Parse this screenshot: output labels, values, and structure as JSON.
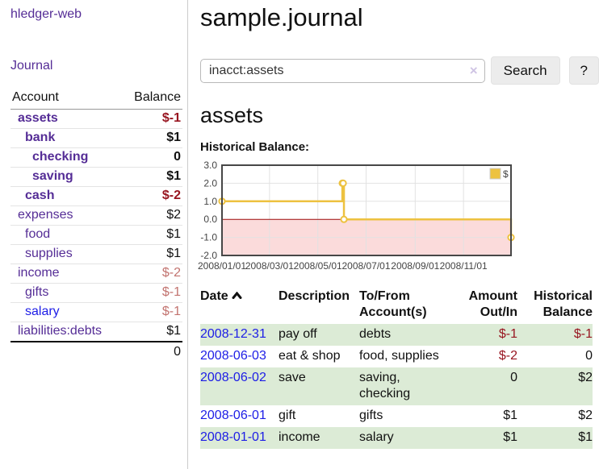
{
  "colors": {
    "link_purple": "#552d96",
    "link_blue": "#1d1de6",
    "negative_strong": "#97141f",
    "negative_muted": "#c2736f",
    "row_green": "#dcebd6",
    "chart_line_gold": "#EDC240",
    "chart_negative_fill": "#fbdbdb",
    "chart_zero_line": "#9e0b0b"
  },
  "sidebar": {
    "brand": "hledger-web",
    "journal_label": "Journal",
    "accounts_table": {
      "headers": [
        "Account",
        "Balance"
      ],
      "rows": [
        {
          "name": "assets",
          "balance": "$-1",
          "depth": 0,
          "bold": true,
          "balance_style": "negstrong",
          "link": "purple"
        },
        {
          "name": "bank",
          "balance": "$1",
          "depth": 1,
          "bold": true,
          "balance_style": "pos",
          "link": "purple"
        },
        {
          "name": "checking",
          "balance": "0",
          "depth": 2,
          "bold": true,
          "balance_style": "pos",
          "link": "purple"
        },
        {
          "name": "saving",
          "balance": "$1",
          "depth": 2,
          "bold": true,
          "balance_style": "pos",
          "link": "purple"
        },
        {
          "name": "cash",
          "balance": "$-2",
          "depth": 1,
          "bold": true,
          "balance_style": "negstrong",
          "link": "purple"
        },
        {
          "name": "expenses",
          "balance": "$2",
          "depth": 0,
          "bold": false,
          "balance_style": "pos",
          "link": "purple"
        },
        {
          "name": "food",
          "balance": "$1",
          "depth": 1,
          "bold": false,
          "balance_style": "pos",
          "link": "purple"
        },
        {
          "name": "supplies",
          "balance": "$1",
          "depth": 1,
          "bold": false,
          "balance_style": "pos",
          "link": "purple"
        },
        {
          "name": "income",
          "balance": "$-2",
          "depth": 0,
          "bold": false,
          "balance_style": "negmuted",
          "link": "purple"
        },
        {
          "name": "gifts",
          "balance": "$-1",
          "depth": 1,
          "bold": false,
          "balance_style": "negmuted",
          "link": "purple"
        },
        {
          "name": "salary",
          "balance": "$-1",
          "depth": 1,
          "bold": false,
          "balance_style": "negmuted",
          "link": "blue"
        },
        {
          "name": "liabilities:debts",
          "balance": "$1",
          "depth": 0,
          "bold": false,
          "balance_style": "pos",
          "link": "purple"
        }
      ],
      "total": "0"
    }
  },
  "main": {
    "title": "sample.journal",
    "search": {
      "value": "inacct:assets",
      "clear_icon": "×",
      "button_label": "Search",
      "help_label": "?"
    },
    "account_heading": "assets",
    "chart_label": "Historical Balance:"
  },
  "chart_data": {
    "type": "line",
    "step": true,
    "title": "Historical Balance:",
    "series": [
      {
        "name": "$",
        "color": "#EDC240",
        "points": [
          {
            "x": "2008-01-01",
            "y": 1
          },
          {
            "x": "2008-06-01",
            "y": 2
          },
          {
            "x": "2008-06-02",
            "y": 2
          },
          {
            "x": "2008-06-03",
            "y": 0
          },
          {
            "x": "2008-12-31",
            "y": -1
          }
        ]
      }
    ],
    "xrange": [
      "2008-01-01",
      "2008-12-31"
    ],
    "ylim": [
      -2,
      3
    ],
    "yticks": [
      {
        "value": 3,
        "label": "3.0"
      },
      {
        "value": 2,
        "label": "2.0"
      },
      {
        "value": 1,
        "label": "1.0"
      },
      {
        "value": 0,
        "label": "0.0"
      },
      {
        "value": -1,
        "label": "-1.0"
      },
      {
        "value": -2,
        "label": "-2.0"
      }
    ],
    "xticks": [
      {
        "date": "2008-01-01",
        "label": "2008/01/01"
      },
      {
        "date": "2008-03-01",
        "label": "2008/03/01"
      },
      {
        "date": "2008-05-01",
        "label": "2008/05/01"
      },
      {
        "date": "2008-07-01",
        "label": "2008/07/01"
      },
      {
        "date": "2008-09-01",
        "label": "2008/09/01"
      },
      {
        "date": "2008-11-01",
        "label": "2008/11/01"
      }
    ],
    "legend": {
      "label": "$",
      "position": "top-right"
    },
    "grid": true,
    "negative_region_fill": "#fbdbdb",
    "zero_line_color": "#9e0b0b"
  },
  "register_table": {
    "headers": {
      "date": "Date",
      "description": "Description",
      "account_line1": "To/From",
      "account_line2": "Account(s)",
      "amount_line1": "Amount",
      "amount_line2": "Out/In",
      "balance_line1": "Historical",
      "balance_line2": "Balance"
    },
    "rows": [
      {
        "date": "2008-12-31",
        "description": "pay off",
        "accounts": "debts",
        "amount": "$-1",
        "balance": "$-1",
        "amount_negative": true,
        "balance_negative": true
      },
      {
        "date": "2008-06-03",
        "description": "eat & shop",
        "accounts": "food, supplies",
        "amount": "$-2",
        "balance": "0",
        "amount_negative": true,
        "balance_negative": false
      },
      {
        "date": "2008-06-02",
        "description": "save",
        "accounts": "saving, checking",
        "amount": "0",
        "balance": "$2",
        "amount_negative": false,
        "balance_negative": false
      },
      {
        "date": "2008-06-01",
        "description": "gift",
        "accounts": "gifts",
        "amount": "$1",
        "balance": "$2",
        "amount_negative": false,
        "balance_negative": false
      },
      {
        "date": "2008-01-01",
        "description": "income",
        "accounts": "salary",
        "amount": "$1",
        "balance": "$1",
        "amount_negative": false,
        "balance_negative": false
      }
    ]
  }
}
